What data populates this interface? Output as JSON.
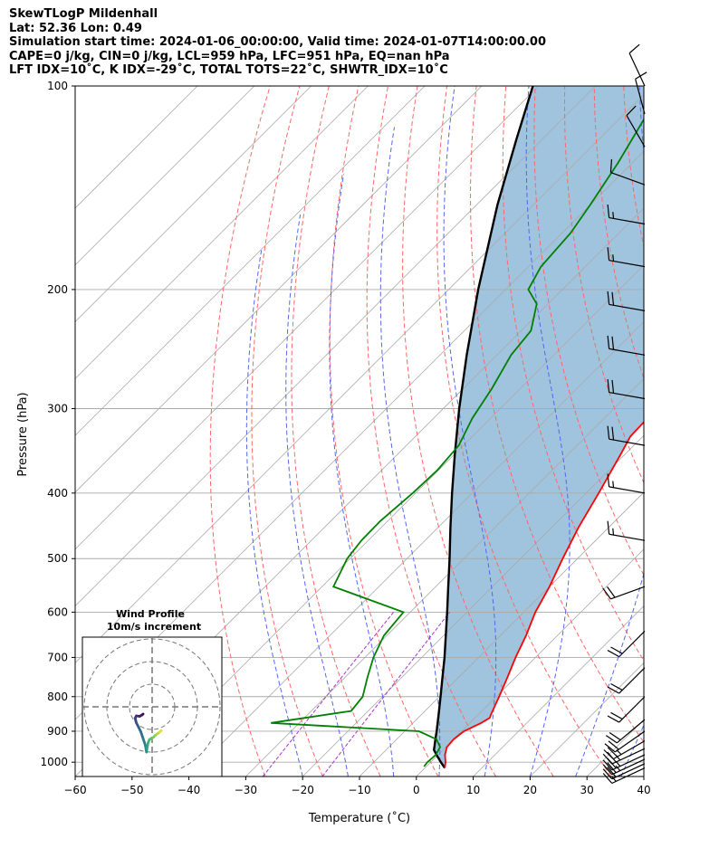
{
  "title_lines": [
    "SkewTLogP Mildenhall",
    "Lat: 52.36   Lon: 0.49",
    "Simulation start time: 2024-01-06_00:00:00, Valid time: 2024-01-07T14:00:00.00",
    "CAPE=0 j/kg, CIN=0 j/kg, LCL=959 hPa, LFC=951 hPa, EQ=nan hPa",
    "LFT IDX=10˚C, K IDX=-29˚C, TOTAL TOTS=22˚C, SHWTR_IDX=10˚C"
  ],
  "chart_data": {
    "type": "skewt-logp",
    "xlabel": "Temperature (˚C)",
    "ylabel": "Pressure (hPa)",
    "xlim": [
      -60,
      40
    ],
    "ylim": [
      1050,
      100
    ],
    "x_ticks": [
      -60,
      -50,
      -40,
      -30,
      -20,
      -10,
      0,
      10,
      20,
      30,
      40
    ],
    "x_tick_labels": [
      "−60",
      "−50",
      "−40",
      "−30",
      "−20",
      "−10",
      "0",
      "10",
      "20",
      "30",
      "40"
    ],
    "p_ticks": [
      1000,
      900,
      800,
      700,
      600,
      500,
      400,
      300,
      200,
      100
    ],
    "grid": true,
    "colors": {
      "temperature": "#ff0000",
      "dewpoint": "#008000",
      "parcel": "#000000",
      "fill": "#a0c4de",
      "dry_adiabats": "#ff6666",
      "moist_adiabats": "#5566ee",
      "mixing_ratio": "#aa33cc",
      "isotherms": "#aaaaaa",
      "barbs": "#000000"
    },
    "temperature": [
      {
        "p": 1020,
        "t": 3.5
      },
      {
        "p": 1000,
        "t": 2.6
      },
      {
        "p": 975,
        "t": 1.2
      },
      {
        "p": 950,
        "t": 0.2
      },
      {
        "p": 925,
        "t": 0.0
      },
      {
        "p": 900,
        "t": 0.4
      },
      {
        "p": 875,
        "t": 2.0
      },
      {
        "p": 860,
        "t": 2.6
      },
      {
        "p": 850,
        "t": 2.2
      },
      {
        "p": 800,
        "t": 0.5
      },
      {
        "p": 750,
        "t": -1.4
      },
      {
        "p": 700,
        "t": -3.5
      },
      {
        "p": 650,
        "t": -5.5
      },
      {
        "p": 600,
        "t": -8.0
      },
      {
        "p": 550,
        "t": -10.0
      },
      {
        "p": 500,
        "t": -12.6
      },
      {
        "p": 450,
        "t": -15.3
      },
      {
        "p": 400,
        "t": -17.8
      },
      {
        "p": 350,
        "t": -20.8
      },
      {
        "p": 330,
        "t": -22.2
      },
      {
        "p": 300,
        "t": -22.5
      },
      {
        "p": 275,
        "t": -21.5
      },
      {
        "p": 250,
        "t": -21.2
      },
      {
        "p": 225,
        "t": -22.6
      },
      {
        "p": 210,
        "t": -24.0
      },
      {
        "p": 200,
        "t": -24.3
      },
      {
        "p": 180,
        "t": -25.4
      },
      {
        "p": 160,
        "t": -28.0
      },
      {
        "p": 140,
        "t": -31.5
      },
      {
        "p": 120,
        "t": -35.8
      },
      {
        "p": 100,
        "t": -41.0
      }
    ],
    "dewpoint": [
      {
        "p": 1015,
        "t": -0.4
      },
      {
        "p": 1000,
        "t": -0.6
      },
      {
        "p": 975,
        "t": -0.4
      },
      {
        "p": 950,
        "t": -1.0
      },
      {
        "p": 925,
        "t": -3.0
      },
      {
        "p": 900,
        "t": -7.5
      },
      {
        "p": 875,
        "t": -35.0
      },
      {
        "p": 840,
        "t": -23.0
      },
      {
        "p": 800,
        "t": -23.5
      },
      {
        "p": 750,
        "t": -26.0
      },
      {
        "p": 700,
        "t": -28.5
      },
      {
        "p": 650,
        "t": -30.5
      },
      {
        "p": 600,
        "t": -31.2
      },
      {
        "p": 550,
        "t": -48.0
      },
      {
        "p": 500,
        "t": -50.5
      },
      {
        "p": 470,
        "t": -51.2
      },
      {
        "p": 440,
        "t": -51.3
      },
      {
        "p": 400,
        "t": -50.5
      },
      {
        "p": 370,
        "t": -50.2
      },
      {
        "p": 340,
        "t": -50.8
      },
      {
        "p": 310,
        "t": -53.2
      },
      {
        "p": 280,
        "t": -55.0
      },
      {
        "p": 250,
        "t": -57.5
      },
      {
        "p": 230,
        "t": -58.3
      },
      {
        "p": 210,
        "t": -62.0
      },
      {
        "p": 200,
        "t": -66.0
      },
      {
        "p": 185,
        "t": -67.8
      },
      {
        "p": 165,
        "t": -68.5
      },
      {
        "p": 150,
        "t": -70.0
      },
      {
        "p": 130,
        "t": -72.5
      },
      {
        "p": 100,
        "t": -78.0
      }
    ],
    "parcel": [
      {
        "p": 1020,
        "t": 3.5
      },
      {
        "p": 1000,
        "t": 1.8
      },
      {
        "p": 975,
        "t": -0.3
      },
      {
        "p": 959,
        "t": -1.6
      },
      {
        "p": 950,
        "t": -2.0
      },
      {
        "p": 925,
        "t": -3.2
      },
      {
        "p": 900,
        "t": -4.4
      },
      {
        "p": 850,
        "t": -7.0
      },
      {
        "p": 800,
        "t": -9.8
      },
      {
        "p": 750,
        "t": -12.8
      },
      {
        "p": 700,
        "t": -16.0
      },
      {
        "p": 650,
        "t": -19.6
      },
      {
        "p": 600,
        "t": -23.5
      },
      {
        "p": 550,
        "t": -27.8
      },
      {
        "p": 500,
        "t": -32.5
      },
      {
        "p": 450,
        "t": -37.8
      },
      {
        "p": 400,
        "t": -43.6
      },
      {
        "p": 350,
        "t": -50.0
      },
      {
        "p": 300,
        "t": -57.2
      },
      {
        "p": 250,
        "t": -65.3
      },
      {
        "p": 200,
        "t": -74.8
      },
      {
        "p": 150,
        "t": -86.3
      },
      {
        "p": 120,
        "t": -94.5
      },
      {
        "p": 100,
        "t": -101.0
      }
    ],
    "wind_barbs": [
      {
        "p": 1020,
        "speed_kt": 15,
        "dir": 245
      },
      {
        "p": 1005,
        "speed_kt": 20,
        "dir": 245
      },
      {
        "p": 990,
        "speed_kt": 25,
        "dir": 245
      },
      {
        "p": 975,
        "speed_kt": 25,
        "dir": 245
      },
      {
        "p": 955,
        "speed_kt": 25,
        "dir": 245
      },
      {
        "p": 930,
        "speed_kt": 25,
        "dir": 240
      },
      {
        "p": 900,
        "speed_kt": 20,
        "dir": 235
      },
      {
        "p": 865,
        "speed_kt": 20,
        "dir": 230
      },
      {
        "p": 800,
        "speed_kt": 20,
        "dir": 225
      },
      {
        "p": 725,
        "speed_kt": 20,
        "dir": 225
      },
      {
        "p": 640,
        "speed_kt": 20,
        "dir": 225
      },
      {
        "p": 550,
        "speed_kt": 20,
        "dir": 250
      },
      {
        "p": 470,
        "speed_kt": 15,
        "dir": 280
      },
      {
        "p": 400,
        "speed_kt": 15,
        "dir": 280
      },
      {
        "p": 340,
        "speed_kt": 20,
        "dir": 280
      },
      {
        "p": 290,
        "speed_kt": 20,
        "dir": 280
      },
      {
        "p": 250,
        "speed_kt": 20,
        "dir": 280
      },
      {
        "p": 215,
        "speed_kt": 20,
        "dir": 280
      },
      {
        "p": 185,
        "speed_kt": 15,
        "dir": 280
      },
      {
        "p": 160,
        "speed_kt": 15,
        "dir": 280
      },
      {
        "p": 140,
        "speed_kt": 10,
        "dir": 290
      },
      {
        "p": 123,
        "speed_kt": 10,
        "dir": 330
      },
      {
        "p": 110,
        "speed_kt": 10,
        "dir": 345
      },
      {
        "p": 100,
        "speed_kt": 10,
        "dir": 335
      }
    ],
    "hodograph": {
      "title": "Wind Profile",
      "subtitle": "10m/s increment",
      "rings_ms": [
        10,
        20,
        30
      ],
      "points": [
        {
          "u": -2.5,
          "v": -20.0
        },
        {
          "u": -2.2,
          "v": -18.0
        },
        {
          "u": -1.8,
          "v": -16.0
        },
        {
          "u": -1.2,
          "v": -14.5
        },
        {
          "u": -0.5,
          "v": -14.0
        },
        {
          "u": 0.5,
          "v": -13.5
        },
        {
          "u": 1.5,
          "v": -12.5
        },
        {
          "u": 2.5,
          "v": -11.8
        },
        {
          "u": 3.5,
          "v": -11.0
        },
        {
          "u": 4.0,
          "v": -10.5
        }
      ],
      "upper_points": [
        {
          "u": -2.5,
          "v": -20.0
        },
        {
          "u": -3.0,
          "v": -17.0
        },
        {
          "u": -4.0,
          "v": -14.0
        },
        {
          "u": -5.0,
          "v": -11.0
        },
        {
          "u": -6.0,
          "v": -9.0
        },
        {
          "u": -7.0,
          "v": -7.0
        },
        {
          "u": -7.5,
          "v": -5.0
        },
        {
          "u": -7.0,
          "v": -4.0
        },
        {
          "u": -5.5,
          "v": -4.2
        },
        {
          "u": -4.5,
          "v": -3.6
        },
        {
          "u": -4.0,
          "v": -3.2
        }
      ],
      "colormap": "viridis"
    }
  }
}
